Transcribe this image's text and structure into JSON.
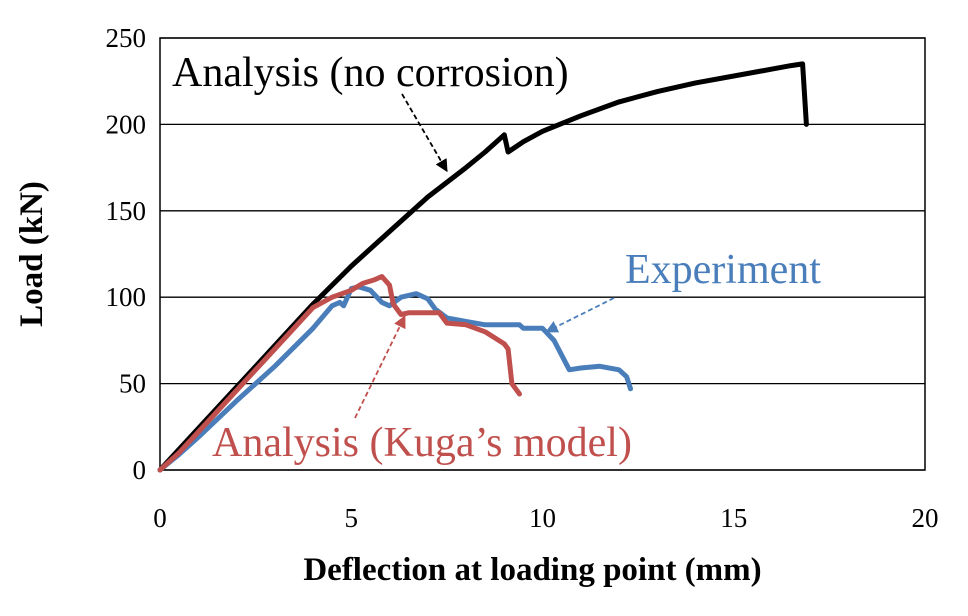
{
  "chart_data": {
    "type": "line",
    "xlabel": "Deflection at loading point (mm)",
    "ylabel": "Load (kN)",
    "xlim": [
      0,
      20
    ],
    "ylim": [
      0,
      250
    ],
    "x_ticks": [
      0,
      5,
      10,
      15,
      20
    ],
    "y_ticks": [
      0,
      50,
      100,
      150,
      200,
      250
    ],
    "grid": "horizontal",
    "legend": "none (direct annotations with dashed arrows)",
    "series": [
      {
        "name": "Analysis (no corrosion)",
        "color": "#000000",
        "points": [
          [
            0,
            0
          ],
          [
            1,
            24
          ],
          [
            2,
            48
          ],
          [
            3,
            72
          ],
          [
            4,
            96
          ],
          [
            5,
            118
          ],
          [
            6,
            138
          ],
          [
            7,
            158
          ],
          [
            8,
            175
          ],
          [
            8.5,
            184
          ],
          [
            9,
            194
          ],
          [
            9.1,
            184
          ],
          [
            9.5,
            190
          ],
          [
            10,
            196
          ],
          [
            11,
            205
          ],
          [
            12,
            213
          ],
          [
            13,
            219
          ],
          [
            14,
            224
          ],
          [
            15,
            228
          ],
          [
            16,
            232
          ],
          [
            16.5,
            234
          ],
          [
            16.8,
            235
          ],
          [
            16.9,
            200
          ]
        ]
      },
      {
        "name": "Experiment",
        "color": "#4a7ebb",
        "points": [
          [
            0,
            0
          ],
          [
            0.5,
            9
          ],
          [
            1,
            19
          ],
          [
            2,
            40
          ],
          [
            3,
            60
          ],
          [
            4,
            82
          ],
          [
            4.5,
            95
          ],
          [
            4.7,
            97
          ],
          [
            4.8,
            95
          ],
          [
            5,
            105
          ],
          [
            5.2,
            106
          ],
          [
            5.5,
            104
          ],
          [
            5.8,
            97
          ],
          [
            6,
            95
          ],
          [
            6.3,
            100
          ],
          [
            6.7,
            102
          ],
          [
            7,
            99
          ],
          [
            7.2,
            93
          ],
          [
            7.5,
            88
          ],
          [
            8,
            86
          ],
          [
            8.5,
            84
          ],
          [
            9,
            84
          ],
          [
            9.4,
            84
          ],
          [
            9.5,
            82
          ],
          [
            10,
            82
          ],
          [
            10.3,
            75
          ],
          [
            10.7,
            58
          ],
          [
            11,
            59
          ],
          [
            11.5,
            60
          ],
          [
            12,
            58
          ],
          [
            12.2,
            54
          ],
          [
            12.3,
            47
          ]
        ]
      },
      {
        "name": "Analysis (Kuga’s model)",
        "color": "#c0504d",
        "points": [
          [
            0,
            0
          ],
          [
            0.5,
            10
          ],
          [
            1,
            22
          ],
          [
            2,
            46
          ],
          [
            3,
            70
          ],
          [
            4,
            94
          ],
          [
            4.5,
            100
          ],
          [
            5,
            104
          ],
          [
            5.3,
            108
          ],
          [
            5.6,
            110
          ],
          [
            5.8,
            112
          ],
          [
            6,
            107
          ],
          [
            6.1,
            96
          ],
          [
            6.3,
            90
          ],
          [
            6.5,
            91
          ],
          [
            7,
            91
          ],
          [
            7.3,
            91
          ],
          [
            7.5,
            85
          ],
          [
            8,
            84
          ],
          [
            8.5,
            80
          ],
          [
            9,
            73
          ],
          [
            9.1,
            70
          ],
          [
            9.2,
            50
          ],
          [
            9.3,
            47
          ],
          [
            9.4,
            44
          ]
        ]
      }
    ],
    "annotations": [
      {
        "text": "Analysis (no corrosion)",
        "color": "#000000",
        "arrow_to": [
          7.5,
          173
        ]
      },
      {
        "text": "Experiment",
        "color": "#4a7ebb",
        "arrow_to": [
          10.1,
          80
        ]
      },
      {
        "text": "Analysis (Kuga’s model)",
        "color": "#c0504d",
        "arrow_to": [
          6.4,
          89
        ]
      }
    ]
  }
}
